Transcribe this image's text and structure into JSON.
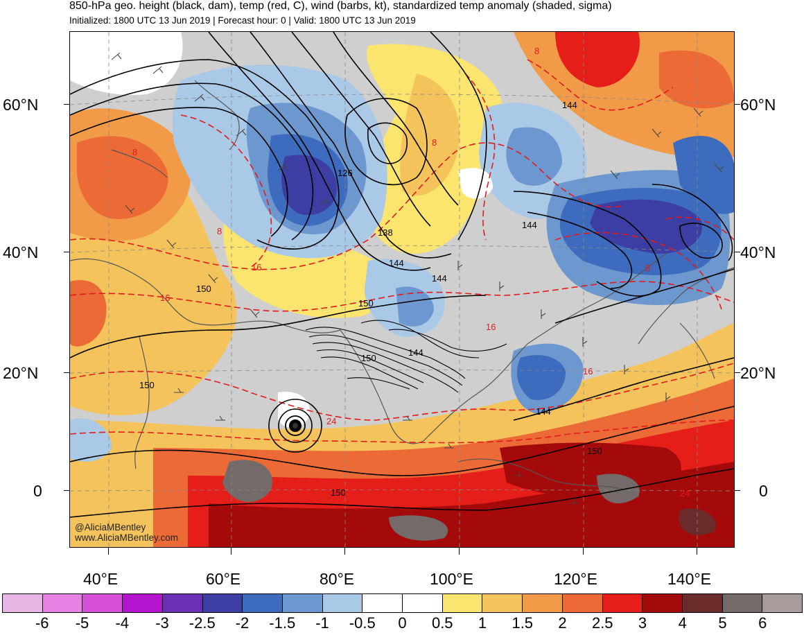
{
  "header": {
    "title": "850-hPa geo. height (black, dam), temp (red, C), wind (barbs, kt), standardized temp anomaly (shaded, sigma)",
    "subtitle": "Initialized: 1800 UTC 13 Jun 2019 | Forecast hour: 0 | Valid: 1800 UTC 13 Jun 2019"
  },
  "axes": {
    "lat_left": [
      "60°N",
      "40°N",
      "20°N",
      "0"
    ],
    "lat_right": [
      "60°N",
      "40°N",
      "20°N",
      "0"
    ],
    "lon_bottom": [
      "40°E",
      "60°E",
      "80°E",
      "100°E",
      "120°E",
      "140°E"
    ]
  },
  "contour_labels": {
    "height": [
      "126",
      "138",
      "144",
      "144",
      "144",
      "150",
      "150",
      "144",
      "150",
      "150",
      "150",
      "144",
      "144",
      "150"
    ],
    "temp": [
      "24",
      "16",
      "8",
      "8",
      "16",
      "8",
      "16",
      "8",
      "8",
      "16",
      "24"
    ]
  },
  "credit": {
    "handle": "@AliciaMBentley",
    "website": "www.AliciaMBentley.com"
  },
  "colorbar": {
    "labels": [
      "-6",
      "-5",
      "-4",
      "-3",
      "-2.5",
      "-2",
      "-1.5",
      "-1",
      "-0.5",
      "0",
      "0.5",
      "1",
      "1.5",
      "2",
      "2.5",
      "3",
      "4",
      "5",
      "6"
    ],
    "colors": [
      "#e8b6e4",
      "#e683e2",
      "#d54fd7",
      "#b514cf",
      "#6a2fb2",
      "#3c3ea3",
      "#3d6bbd",
      "#6c98cf",
      "#a9c9e6",
      "#ffffff",
      "#ffffff",
      "#fbe56e",
      "#f5c35b",
      "#f19b48",
      "#ec6a36",
      "#e51e1a",
      "#a50a0a",
      "#6b2b2b",
      "#756a6a",
      "#a79b9b"
    ]
  },
  "colors": {
    "height_contour": "#000000",
    "temp_contour": "#e31a1c",
    "land_outline": "#555555",
    "neutral": "#cfcfcf"
  }
}
